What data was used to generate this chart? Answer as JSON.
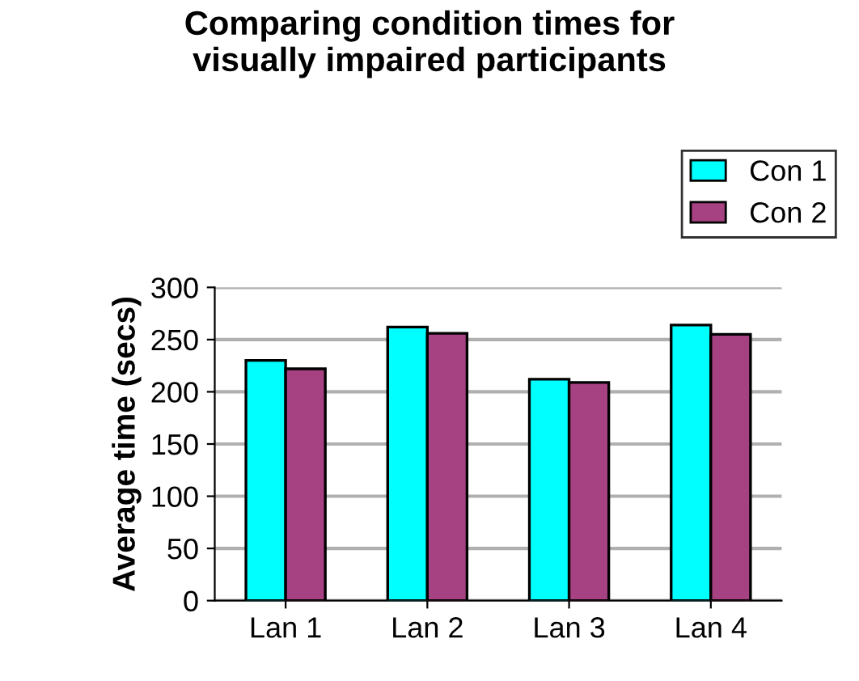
{
  "chart_data": {
    "type": "bar",
    "title": "Comparing condition times for\nvisually impaired participants",
    "ylabel": "Average time (secs)",
    "categories": [
      "Lan 1",
      "Lan 2",
      "Lan 3",
      "Lan 4"
    ],
    "series": [
      {
        "name": "Con 1",
        "color": "#00ffff",
        "values": [
          230,
          262,
          212,
          264
        ]
      },
      {
        "name": "Con 2",
        "color": "#a64182",
        "values": [
          222,
          256,
          209,
          255
        ]
      }
    ],
    "ylim": [
      0,
      300
    ],
    "yticks": [
      0,
      50,
      100,
      150,
      200,
      250,
      300
    ],
    "grid": "y",
    "legend": "top right"
  }
}
